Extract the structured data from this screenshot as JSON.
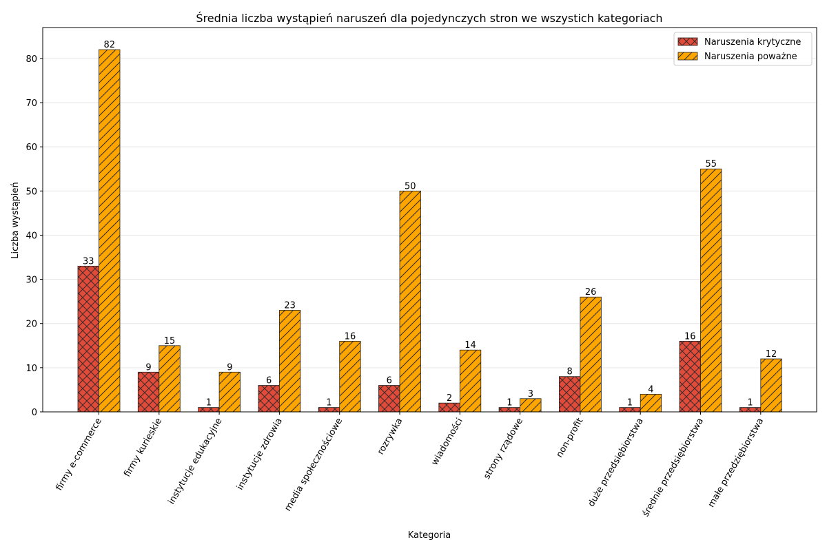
{
  "chart_data": {
    "type": "bar",
    "title": "Średnia liczba wystąpień naruszeń dla pojedynczych stron we wszystich kategoriach",
    "xlabel": "Kategoria",
    "ylabel": "Liczba wystąpień",
    "categories": [
      "firmy e-commerce",
      "firmy kurieskie",
      "instytucje edukacyjne",
      "instytucje zdrowia",
      "media społecznościowe",
      "rozrywka",
      "wiadomości",
      "strony rządowe",
      "non-profit",
      "duże przedsiębiorstwa",
      "średnie przedsiębiorstwa",
      "małe przedziębiorstwa"
    ],
    "series": [
      {
        "name": "Naruszenia krytyczne",
        "color": "#e04b3a",
        "hatch": "crosshatch",
        "values": [
          33,
          9,
          1,
          6,
          1,
          6,
          2,
          1,
          8,
          1,
          16,
          1
        ]
      },
      {
        "name": "Naruszenia poważne",
        "color": "#ffa500",
        "hatch": "diagonal",
        "values": [
          82,
          15,
          9,
          23,
          16,
          50,
          14,
          3,
          26,
          4,
          55,
          12
        ]
      }
    ],
    "ylim": [
      0,
      87
    ],
    "yticks": [
      0,
      10,
      20,
      30,
      40,
      50,
      60,
      70,
      80
    ],
    "grid": "horizontal",
    "legend": "top-right",
    "tick_rotation": 60
  }
}
